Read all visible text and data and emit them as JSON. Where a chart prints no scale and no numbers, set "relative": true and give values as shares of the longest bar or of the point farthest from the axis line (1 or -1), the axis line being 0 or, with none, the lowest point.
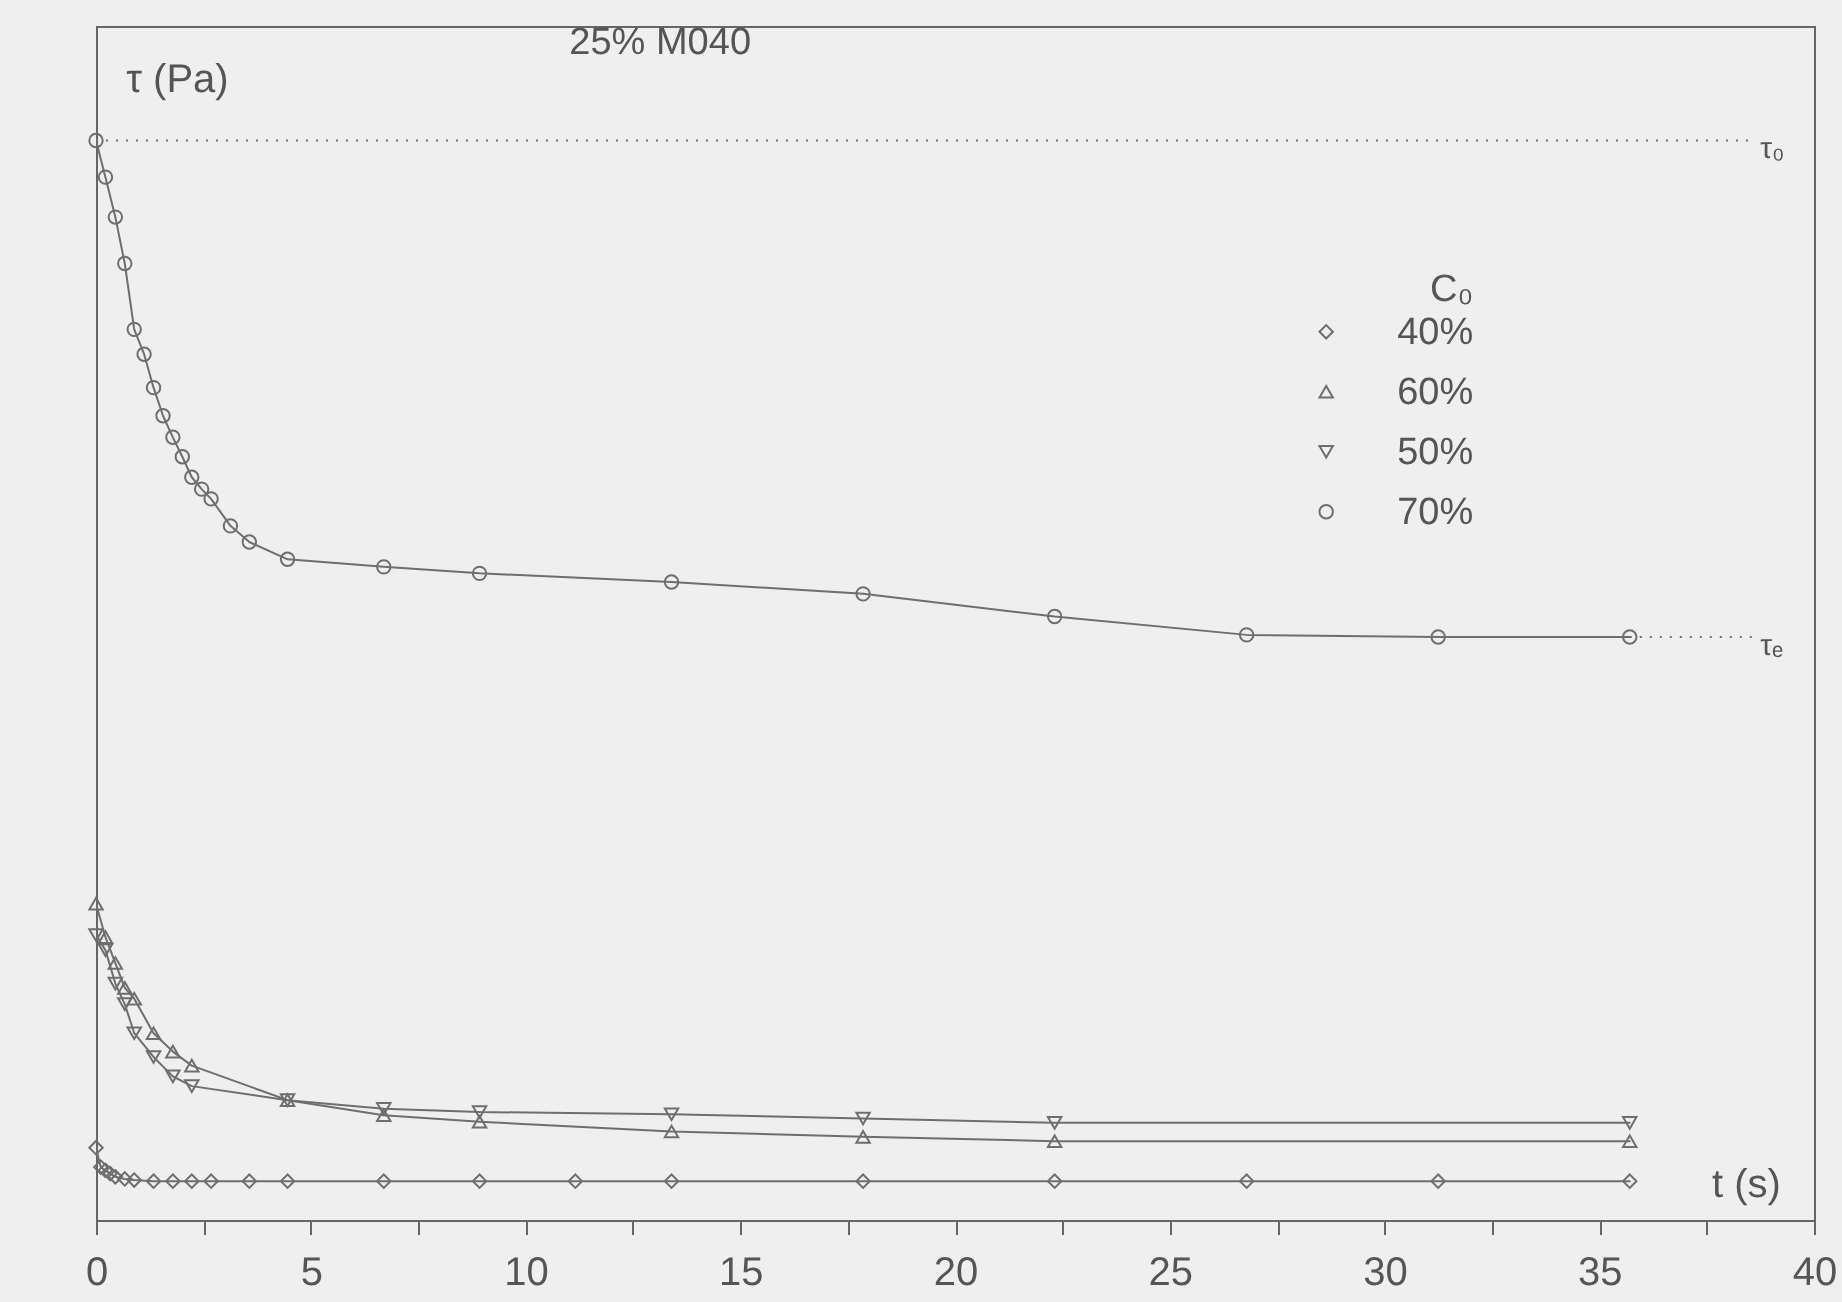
{
  "chart_data": {
    "type": "line",
    "title": "25% M040",
    "xlabel": "t (s)",
    "ylabel": "τ (Pa)",
    "legend_title": "C₀",
    "relative": true,
    "legend": "top right",
    "xlim": [
      0,
      40
    ],
    "xticks": [
      0,
      {
        "value": 2.5,
        "label": null
      },
      5,
      {
        "value": 7.5,
        "label": null
      },
      10,
      {
        "value": 12.5,
        "label": null
      },
      15,
      {
        "value": 17.5,
        "label": null
      },
      20,
      {
        "value": 22.5,
        "label": null
      },
      25,
      {
        "value": 27.5,
        "label": null
      },
      30,
      {
        "value": 32.5,
        "label": null
      },
      35,
      {
        "value": 37.5,
        "label": null
      },
      40
    ],
    "series": [
      {
        "name": "40%",
        "color": "#6e6e6e",
        "marker": "diamond",
        "x": [
          0,
          0.11,
          0.22,
          0.33,
          0.45,
          0.67,
          0.89,
          1.34,
          1.79,
          2.23,
          2.68,
          3.57,
          4.46,
          6.7,
          8.93,
          11.16,
          13.4,
          17.86,
          22.32,
          26.79,
          31.25,
          35.71
        ],
        "values": [
          0.067,
          0.049,
          0.046,
          0.043,
          0.04,
          0.038,
          0.037,
          0.036,
          0.036,
          0.036,
          0.036,
          0.036,
          0.036,
          0.036,
          0.036,
          0.036,
          0.036,
          0.036,
          0.036,
          0.036,
          0.036,
          0.036
        ]
      },
      {
        "name": "60%",
        "color": "#6e6e6e",
        "marker": "triangle",
        "x": [
          0,
          0.22,
          0.45,
          0.67,
          0.89,
          1.34,
          1.79,
          2.23,
          4.46,
          6.7,
          8.93,
          13.4,
          17.86,
          22.32,
          35.71
        ],
        "values": [
          0.293,
          0.262,
          0.238,
          0.215,
          0.205,
          0.173,
          0.156,
          0.143,
          0.111,
          0.097,
          0.091,
          0.082,
          0.077,
          0.073,
          0.073
        ]
      },
      {
        "name": "50%",
        "color": "#6e6e6e",
        "marker": "triangle-down",
        "x": [
          0,
          0.22,
          0.45,
          0.67,
          0.89,
          1.34,
          1.79,
          2.23,
          4.46,
          6.7,
          8.93,
          13.4,
          17.86,
          22.32,
          35.71
        ],
        "values": [
          0.264,
          0.25,
          0.219,
          0.2,
          0.173,
          0.151,
          0.133,
          0.124,
          0.111,
          0.103,
          0.1,
          0.098,
          0.094,
          0.09,
          0.09
        ]
      },
      {
        "name": "70%",
        "color": "#6e6e6e",
        "marker": "circle",
        "x": [
          0,
          0.22,
          0.45,
          0.67,
          0.89,
          1.12,
          1.34,
          1.56,
          1.79,
          2.01,
          2.23,
          2.46,
          2.68,
          3.13,
          3.57,
          4.46,
          6.7,
          8.93,
          13.4,
          17.86,
          22.32,
          26.79,
          31.25,
          35.71
        ],
        "values": [
          1.0,
          0.966,
          0.929,
          0.886,
          0.825,
          0.802,
          0.771,
          0.745,
          0.725,
          0.707,
          0.688,
          0.677,
          0.668,
          0.643,
          0.628,
          0.612,
          0.605,
          0.599,
          0.591,
          0.58,
          0.559,
          0.542,
          0.54,
          0.54
        ]
      }
    ],
    "ref_lines": [
      {
        "axis": "y",
        "value": 1.0,
        "label": "τ₀",
        "line_style": "dotted"
      },
      {
        "axis": "y",
        "value": 0.54,
        "label": "τₑ",
        "line_style": "dotted"
      }
    ]
  }
}
